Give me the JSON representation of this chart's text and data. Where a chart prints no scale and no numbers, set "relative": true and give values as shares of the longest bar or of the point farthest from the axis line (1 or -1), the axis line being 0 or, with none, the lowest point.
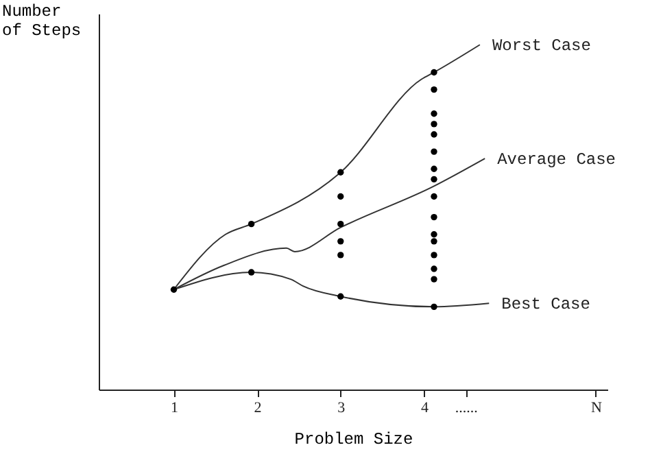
{
  "chart_data": {
    "type": "line",
    "relative": true,
    "xlabel": "Problem Size",
    "ylabel": "Number\nof Steps",
    "xlim": [
      0.1,
      6.2
    ],
    "xticks": [
      1,
      2,
      3,
      4,
      {
        "value": 4.5,
        "label": "......"
      },
      {
        "value": 6.06,
        "label": "N"
      }
    ],
    "series": [
      {
        "name": "Worst  Case",
        "type": "line",
        "color": "#333333",
        "x": [
          1,
          1.62,
          1.93,
          3,
          3.97,
          4.12,
          4.67
        ],
        "values": [
          0.29,
          0.45,
          0.48,
          0.63,
          0.9,
          0.92,
          1
        ]
      },
      {
        "name": "Average Case",
        "type": "line",
        "color": "#333333",
        "x": [
          1,
          1.6,
          2.35,
          2.45,
          3,
          4.12,
          4.73
        ],
        "values": [
          0.29,
          0.36,
          0.41,
          0.4,
          0.47,
          0.59,
          0.67
        ]
      },
      {
        "name": "Best Case",
        "type": "line",
        "color": "#333333",
        "x": [
          1,
          1.93,
          2.4,
          2.55,
          3,
          4.12,
          4.78
        ],
        "values": [
          0.29,
          0.34,
          0.32,
          0.3,
          0.27,
          0.24,
          0.25
        ]
      },
      {
        "type": "scatter",
        "color": "#000000",
        "x": [
          1,
          1.93,
          1.93,
          3,
          3,
          3,
          3,
          3,
          3,
          4.12,
          4.12,
          4.12,
          4.12,
          4.12,
          4.12,
          4.12,
          4.12,
          4.12,
          4.12,
          4.12,
          4.12,
          4.12,
          4.12,
          4.12,
          4.12
        ],
        "values": [
          0.29,
          0.48,
          0.34,
          0.63,
          0.56,
          0.48,
          0.43,
          0.39,
          0.27,
          0.92,
          0.87,
          0.8,
          0.77,
          0.74,
          0.69,
          0.64,
          0.61,
          0.56,
          0.5,
          0.45,
          0.43,
          0.39,
          0.35,
          0.32,
          0.24
        ]
      }
    ]
  }
}
